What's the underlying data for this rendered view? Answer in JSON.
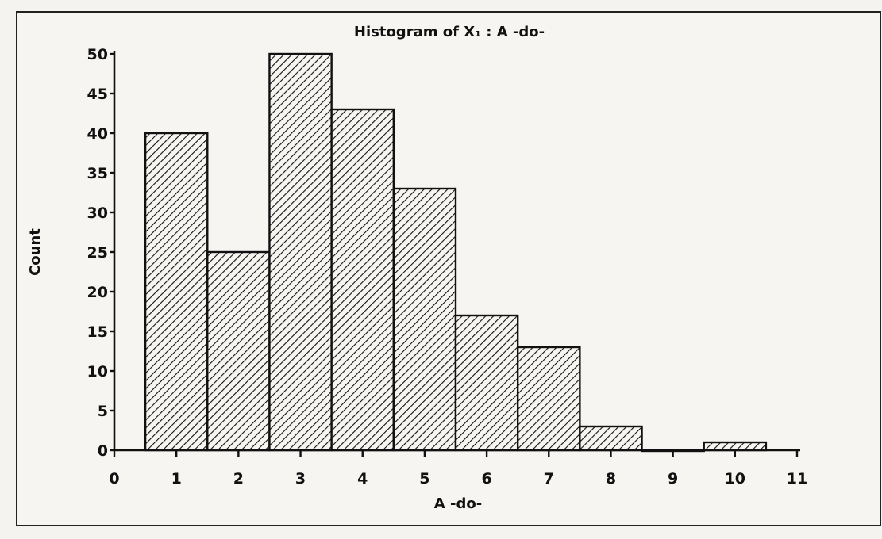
{
  "chart_data": {
    "type": "bar",
    "title": "Histogram of X₁ : A  -do-",
    "xlabel": "A  -do-",
    "ylabel": "Count",
    "categories": [
      "1",
      "2",
      "3",
      "4",
      "5",
      "6",
      "7",
      "8",
      "9",
      "10"
    ],
    "values": [
      40,
      25,
      50,
      43,
      33,
      17,
      13,
      3,
      0,
      1
    ],
    "xlim": [
      0,
      11
    ],
    "ylim": [
      0,
      50
    ],
    "xticks": [
      "0",
      "1",
      "2",
      "3",
      "4",
      "5",
      "6",
      "7",
      "8",
      "9",
      "10",
      "11"
    ],
    "yticks": [
      "0",
      "5",
      "10",
      "15",
      "20",
      "25",
      "30",
      "35",
      "40",
      "45",
      "50"
    ],
    "grid": false,
    "bar_fill": "diagonal hatch",
    "colors": {
      "ink": "#111111",
      "paper": "#f6f5f1"
    }
  }
}
